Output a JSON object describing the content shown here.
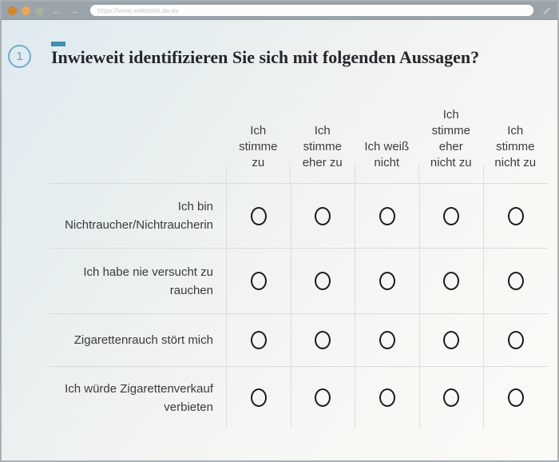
{
  "browser": {
    "url": "https://www.webseite.de.av",
    "back_glyph": "←",
    "forward_glyph": "→"
  },
  "question": {
    "number": "1",
    "title": "Inwieweit identifizieren Sie sich mit folgenden Aussagen?"
  },
  "matrix": {
    "columns": [
      "Ich stimme zu",
      "Ich stimme eher zu",
      "Ich weiß nicht",
      "Ich stimme eher nicht zu",
      "Ich stimme nicht zu"
    ],
    "rows": [
      {
        "label": "Ich bin Nichtraucher/Nichtraucherin",
        "selected": null
      },
      {
        "label": "Ich habe nie versucht zu rauchen",
        "selected": null
      },
      {
        "label": "Zigarettenrauch stört mich",
        "selected": null
      },
      {
        "label": "Ich würde Zigarettenverkauf verbieten",
        "selected": null
      }
    ]
  },
  "colors": {
    "accent": "#3d8fb3",
    "badge_blue": "#74abc8",
    "chrome_gray": "#9aa4aa"
  }
}
